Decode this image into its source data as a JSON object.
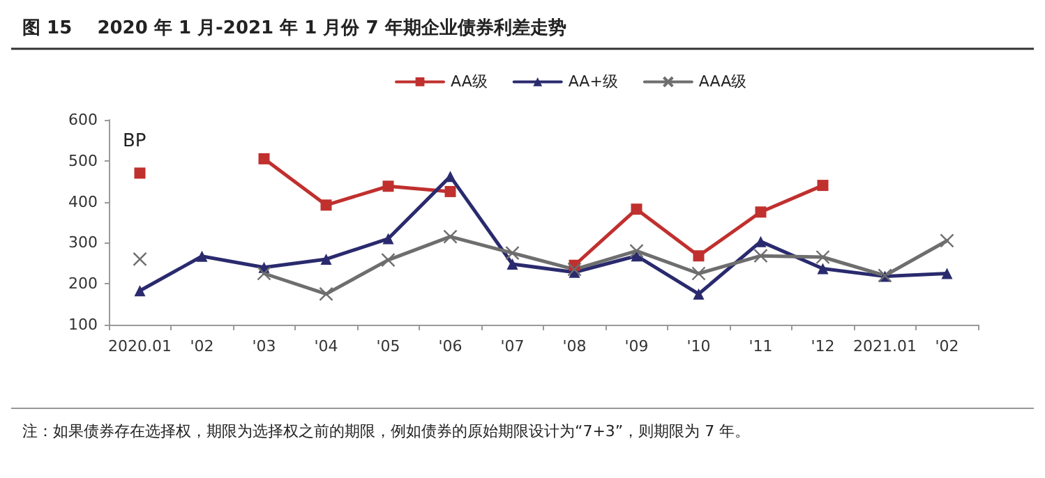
{
  "chart_data": {
    "type": "line",
    "title": "图 15    2020 年 1 月-2021 年 1 月份 7 年期企业债券利差走势",
    "ylabel": "BP",
    "categories": [
      "2020.01",
      "'02",
      "'03",
      "'04",
      "'05",
      "'06",
      "'07",
      "'08",
      "'09",
      "'10",
      "'11",
      "'12",
      "2021.01",
      "'02"
    ],
    "series": [
      {
        "name": "AA级",
        "color": "#c0302e",
        "marker": "square",
        "values": [
          470,
          null,
          505,
          392,
          438,
          425,
          null,
          245,
          382,
          268,
          375,
          440,
          null,
          null
        ]
      },
      {
        "name": "AA+级",
        "color": "#2a2a6e",
        "marker": "triangle",
        "values": [
          183,
          267,
          240,
          260,
          310,
          462,
          248,
          228,
          268,
          175,
          303,
          237,
          218,
          225
        ]
      },
      {
        "name": "AAA级",
        "color": "#6e6e6e",
        "marker": "cross",
        "values": [
          260,
          null,
          225,
          175,
          258,
          315,
          275,
          235,
          280,
          225,
          268,
          265,
          220,
          305
        ]
      }
    ],
    "ylim": [
      100,
      600
    ],
    "yticks": [
      100,
      200,
      300,
      400,
      500,
      600
    ],
    "grid": false,
    "legend": "top",
    "line_style": "solid",
    "annotations": [
      "注：如果债券存在选择权，期限为选择权之前的期限，例如债券的原始期限设计为“7+3”，则期限为 7 年。"
    ]
  }
}
